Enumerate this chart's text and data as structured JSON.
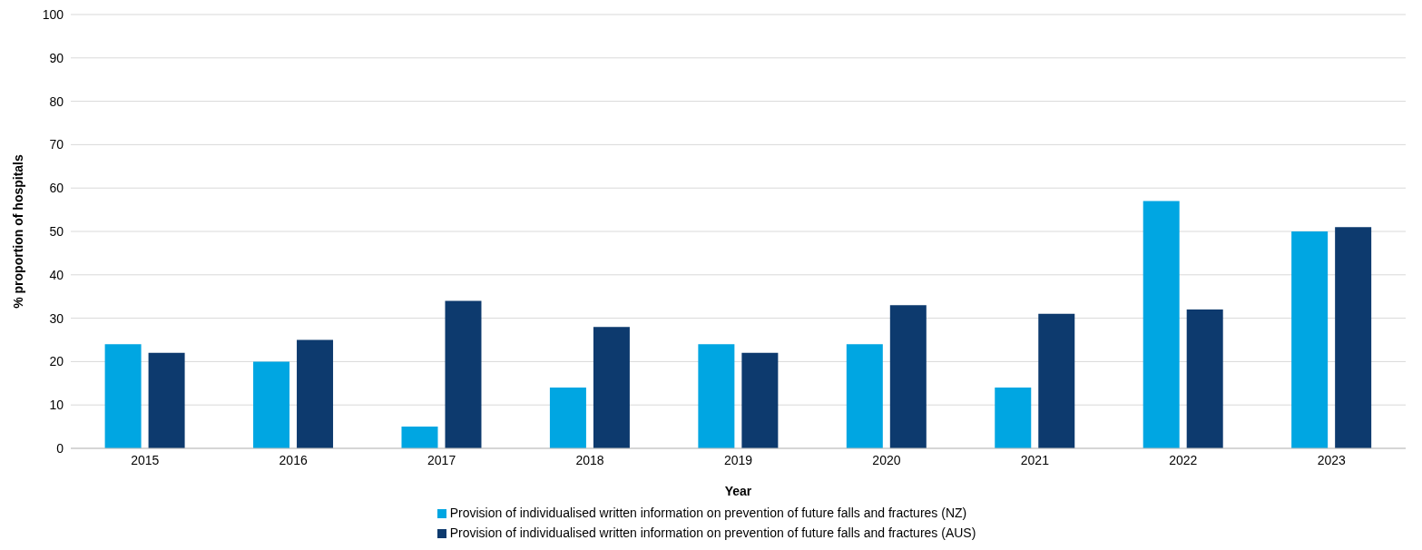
{
  "chart_data": {
    "type": "bar",
    "xlabel": "Year",
    "ylabel": "% proportion of hospitals",
    "categories": [
      "2015",
      "2016",
      "2017",
      "2018",
      "2019",
      "2020",
      "2021",
      "2022",
      "2023"
    ],
    "series": [
      {
        "name": "Provision of individualised written information on prevention of future falls and fractures (NZ)",
        "color": "#00a6e2",
        "values": [
          24,
          20,
          5,
          14,
          24,
          24,
          14,
          57,
          50
        ]
      },
      {
        "name": "Provision of individualised written information on prevention of future falls and fractures (AUS)",
        "color": "#0d3a6e",
        "values": [
          22,
          25,
          34,
          28,
          22,
          33,
          31,
          32,
          51
        ]
      }
    ],
    "ylim": [
      0,
      100
    ],
    "yticks": [
      0,
      10,
      20,
      30,
      40,
      50,
      60,
      70,
      80,
      90,
      100
    ],
    "grid": "y",
    "legend": "bottom"
  }
}
